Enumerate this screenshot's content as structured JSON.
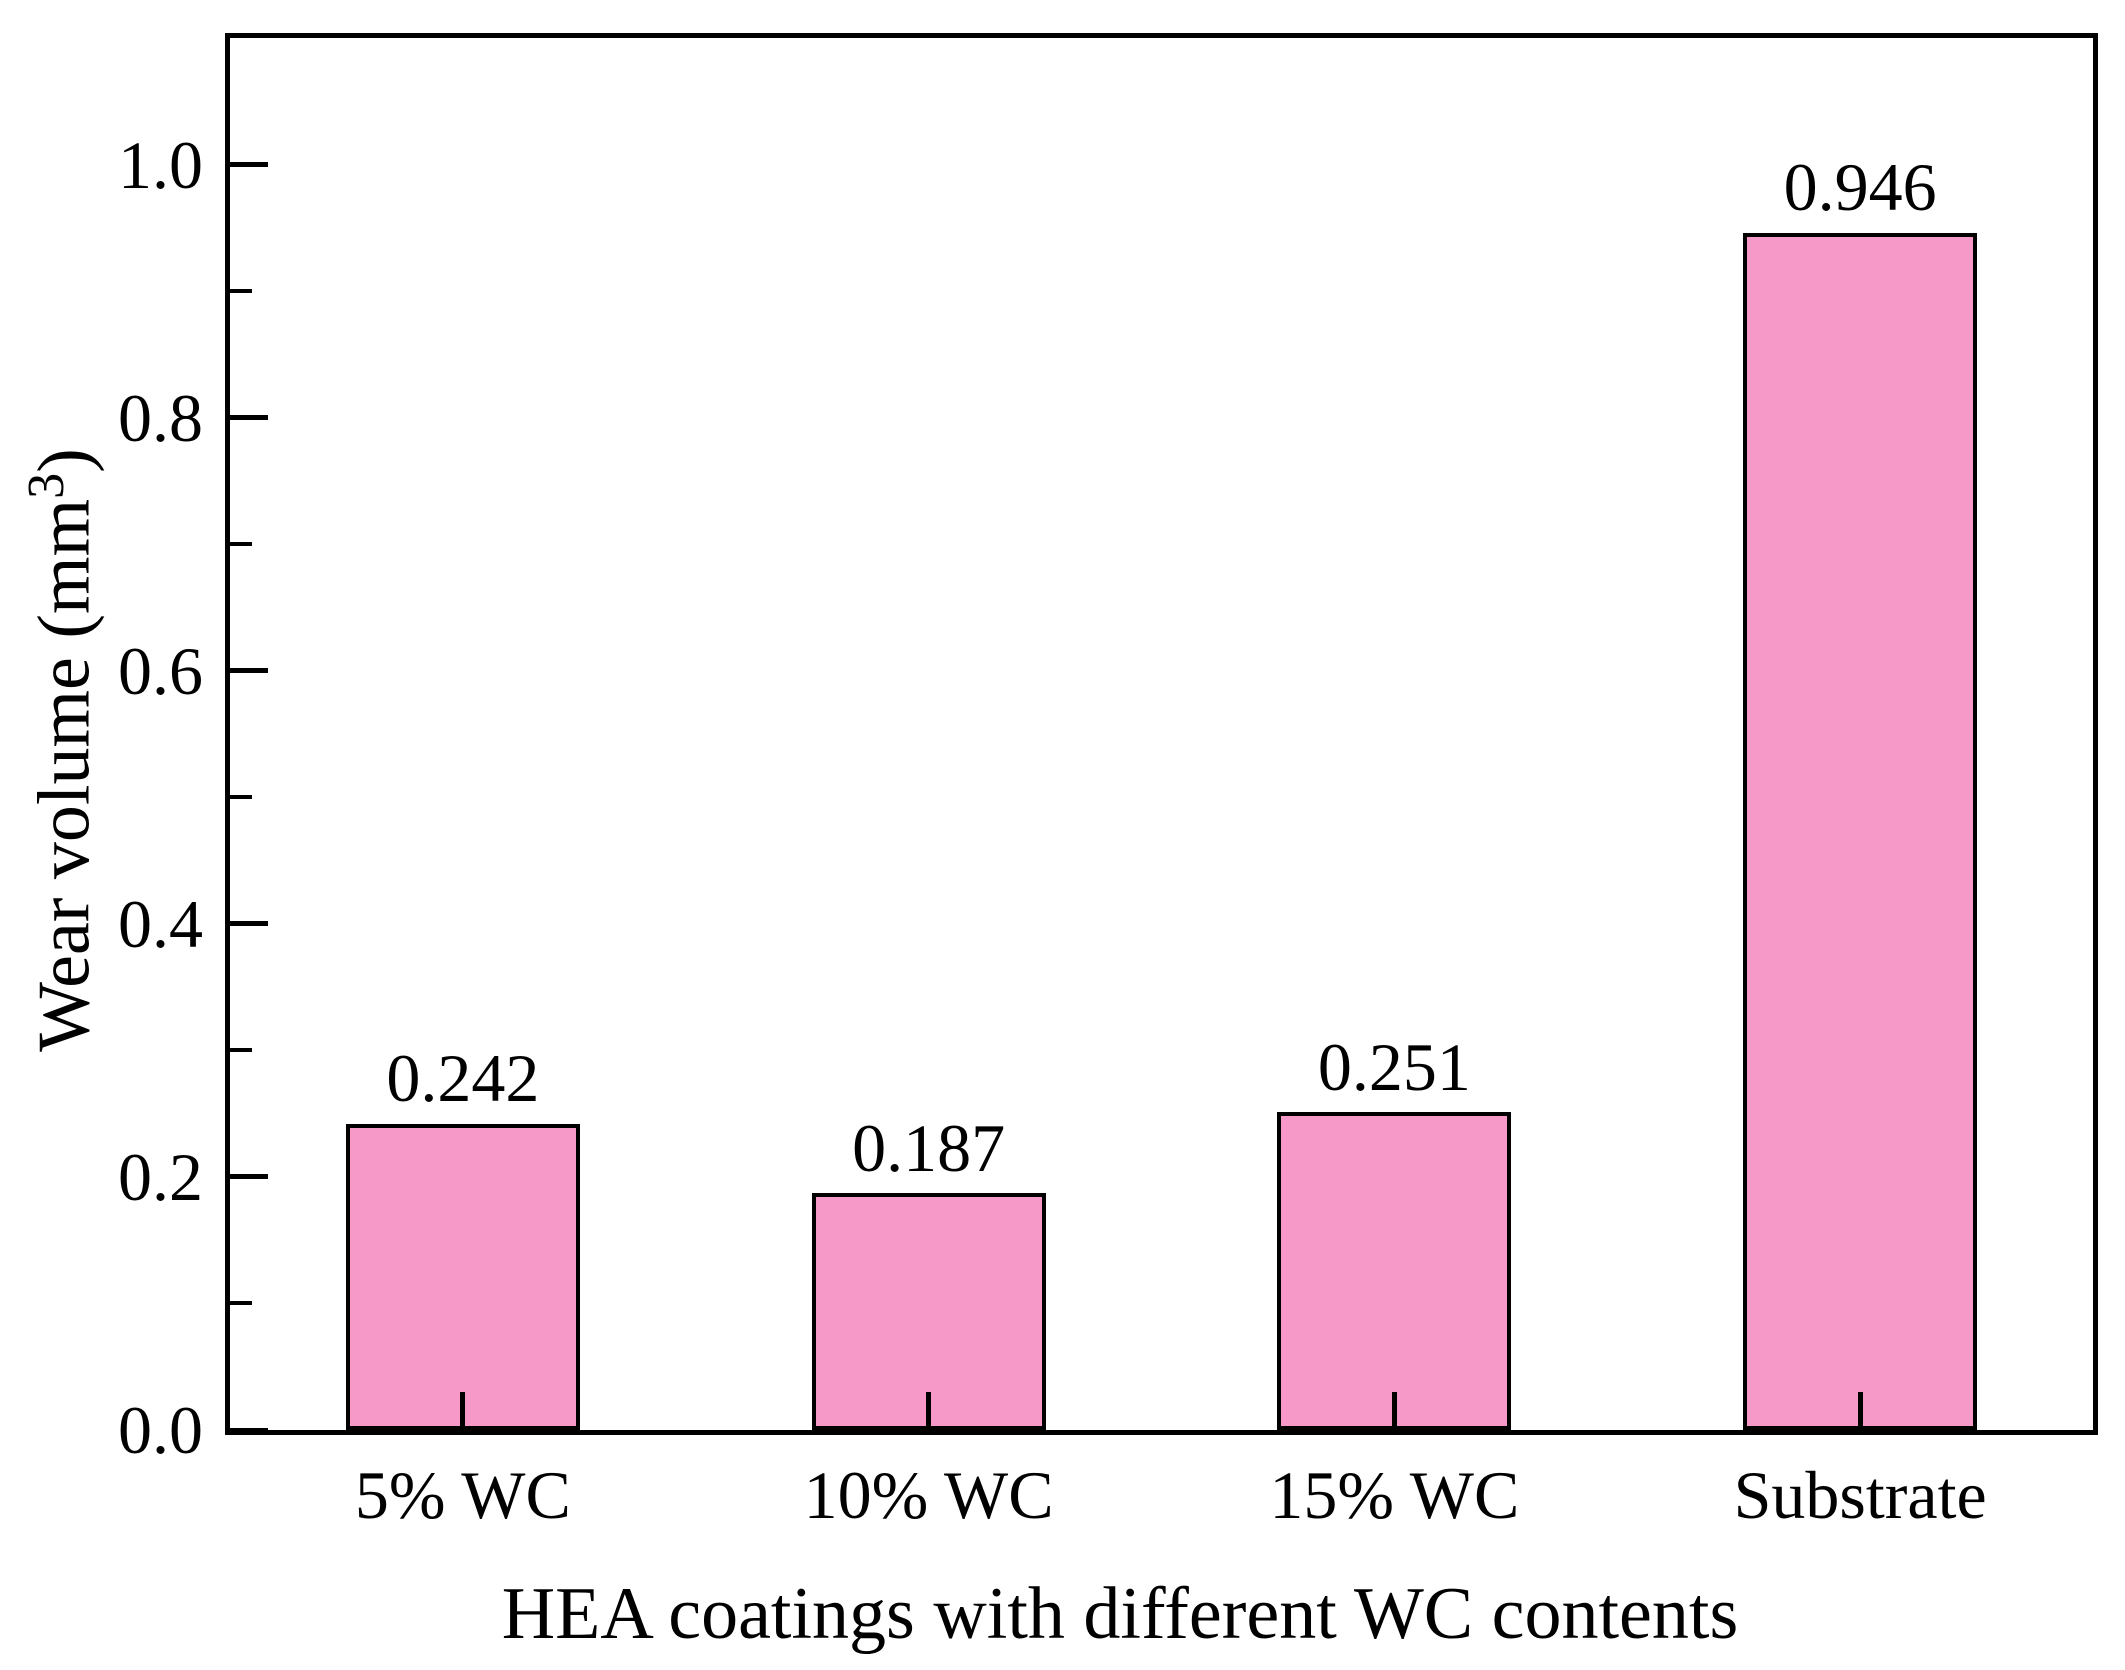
{
  "chart_data": {
    "type": "bar",
    "title": "",
    "categories": [
      "5% WC",
      "10% WC",
      "15% WC",
      "Substrate"
    ],
    "values": [
      0.242,
      0.187,
      0.251,
      0.946
    ],
    "bar_value_labels": [
      "0.242",
      "0.187",
      "0.251",
      "0.946"
    ],
    "xlabel": "HEA coatings with different WC contents",
    "ylabel": "Wear volume (mm³)",
    "ylabel_prefix": "Wear volume (mm",
    "ylabel_superscript": "3",
    "ylabel_suffix": ")",
    "ylim": [
      0.0,
      1.1
    ],
    "yticks": [
      0.0,
      0.2,
      0.4,
      0.6,
      0.8,
      1.0
    ],
    "ytick_labels": [
      "0.0",
      "0.2",
      "0.4",
      "0.6",
      "0.8",
      "1.0"
    ],
    "yticks_minor": [
      0.1,
      0.3,
      0.5,
      0.7,
      0.9
    ],
    "grid": false,
    "legend_position": "none",
    "tick_direction": "in",
    "bar_fill_color": "#F799C8",
    "bar_edge_color": "#000000",
    "axis_color": "#000000",
    "text_color": "#000000",
    "background_color": "#FFFFFF"
  }
}
